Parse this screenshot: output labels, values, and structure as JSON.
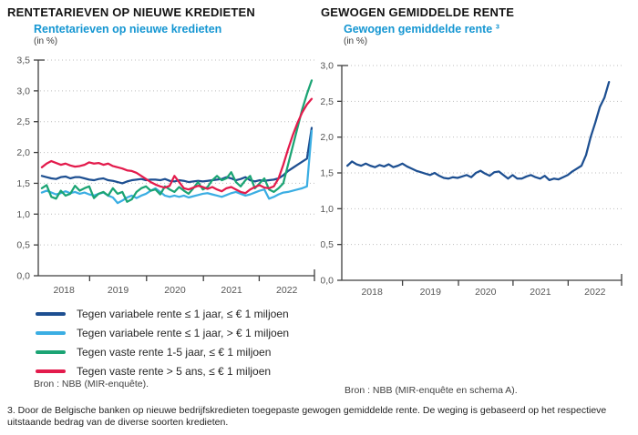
{
  "left_panel": {
    "section_title": "RENTETARIEVEN OP NIEUWE KREDIETEN",
    "chart_title": "Rentetarieven op nieuwe kredieten",
    "unit": "(in %)",
    "source": "Bron : NBB (MIR-enquête)."
  },
  "right_panel": {
    "section_title": "GEWOGEN GEMIDDELDE RENTE",
    "chart_title": "Gewogen gemiddelde rente ³",
    "unit": "(in %)",
    "source": "Bron : NBB (MIR-enquête en schema A)."
  },
  "footnote": "3. Door de Belgische banken op nieuwe bedrijfskredieten toegepaste gewogen gemiddelde rente. De weging is gebaseerd op het respectieve uitstaande bedrag van de diverse soorten kredieten.",
  "colors": {
    "title_blue": "#1496d2",
    "axis": "#3f3f3f",
    "grid": "#bebebe",
    "tick_label": "#555555"
  },
  "chart_data": [
    {
      "type": "line",
      "title": "Rentetarieven op nieuwe kredieten",
      "ylabel": "in %",
      "ylim": [
        0,
        3.5
      ],
      "ytick_step": 0.5,
      "ytick_labels": [
        "0,0",
        "0,5",
        "1,0",
        "1,5",
        "2,0",
        "2,5",
        "3,0",
        "3,5"
      ],
      "x_labels": [
        "2018",
        "2019",
        "2020",
        "2021",
        "2022"
      ],
      "frequency": "monthly",
      "x_start": "2018-01",
      "x_end": "2022-10",
      "grid": "dotted horizontal",
      "legend_position": "below",
      "series": [
        {
          "name": "Tegen variabele rente ≤ 1 jaar, ≤ € 1 miljoen",
          "color": "#1d4f91",
          "values": [
            1.62,
            1.6,
            1.58,
            1.57,
            1.6,
            1.61,
            1.58,
            1.6,
            1.6,
            1.58,
            1.56,
            1.55,
            1.57,
            1.58,
            1.55,
            1.54,
            1.52,
            1.5,
            1.53,
            1.55,
            1.56,
            1.57,
            1.55,
            1.56,
            1.56,
            1.55,
            1.57,
            1.54,
            1.53,
            1.55,
            1.54,
            1.52,
            1.53,
            1.54,
            1.53,
            1.54,
            1.55,
            1.56,
            1.57,
            1.6,
            1.58,
            1.55,
            1.57,
            1.6,
            1.55,
            1.53,
            1.55,
            1.54,
            1.55,
            1.56,
            1.58,
            1.63,
            1.7,
            1.75,
            1.8,
            1.85,
            1.9,
            2.4
          ]
        },
        {
          "name": "Tegen variabele rente ≤ 1 jaar, > € 1 miljoen",
          "color": "#3baee3",
          "values": [
            1.35,
            1.38,
            1.35,
            1.32,
            1.34,
            1.37,
            1.34,
            1.36,
            1.33,
            1.35,
            1.32,
            1.3,
            1.33,
            1.35,
            1.3,
            1.27,
            1.18,
            1.22,
            1.27,
            1.3,
            1.26,
            1.3,
            1.33,
            1.38,
            1.42,
            1.36,
            1.3,
            1.28,
            1.3,
            1.28,
            1.3,
            1.27,
            1.29,
            1.31,
            1.33,
            1.34,
            1.32,
            1.3,
            1.28,
            1.31,
            1.34,
            1.36,
            1.33,
            1.3,
            1.32,
            1.35,
            1.38,
            1.4,
            1.25,
            1.28,
            1.32,
            1.35,
            1.36,
            1.38,
            1.4,
            1.42,
            1.45,
            2.35
          ]
        },
        {
          "name": "Tegen vaste rente 1-5 jaar, ≤ € 1 miljoen",
          "color": "#1ba474",
          "values": [
            1.42,
            1.47,
            1.28,
            1.25,
            1.38,
            1.3,
            1.33,
            1.46,
            1.38,
            1.42,
            1.45,
            1.26,
            1.33,
            1.36,
            1.3,
            1.42,
            1.33,
            1.36,
            1.2,
            1.24,
            1.36,
            1.42,
            1.45,
            1.38,
            1.4,
            1.32,
            1.45,
            1.4,
            1.36,
            1.44,
            1.38,
            1.33,
            1.42,
            1.52,
            1.4,
            1.44,
            1.55,
            1.62,
            1.55,
            1.58,
            1.68,
            1.52,
            1.45,
            1.55,
            1.62,
            1.42,
            1.5,
            1.58,
            1.4,
            1.36,
            1.42,
            1.5,
            1.8,
            2.1,
            2.4,
            2.7,
            2.95,
            3.17
          ]
        },
        {
          "name": "Tegen vaste rente > 5 ans, ≤ € 1 miljoen",
          "color": "#e31b4c",
          "values": [
            1.76,
            1.82,
            1.86,
            1.83,
            1.8,
            1.82,
            1.79,
            1.77,
            1.78,
            1.8,
            1.84,
            1.82,
            1.83,
            1.8,
            1.82,
            1.78,
            1.76,
            1.74,
            1.71,
            1.7,
            1.67,
            1.62,
            1.57,
            1.52,
            1.48,
            1.45,
            1.43,
            1.46,
            1.62,
            1.52,
            1.42,
            1.4,
            1.43,
            1.46,
            1.44,
            1.41,
            1.44,
            1.4,
            1.37,
            1.42,
            1.44,
            1.4,
            1.36,
            1.34,
            1.4,
            1.44,
            1.47,
            1.43,
            1.42,
            1.45,
            1.58,
            1.8,
            2.05,
            2.28,
            2.48,
            2.65,
            2.78,
            2.87
          ]
        }
      ]
    },
    {
      "type": "line",
      "title": "Gewogen gemiddelde rente",
      "ylabel": "in %",
      "ylim": [
        0,
        3.0
      ],
      "ytick_step": 0.5,
      "ytick_labels": [
        "0,0",
        "0,5",
        "1,0",
        "1,5",
        "2,0",
        "2,5",
        "3,0"
      ],
      "x_labels": [
        "2018",
        "2019",
        "2020",
        "2021",
        "2022"
      ],
      "frequency": "monthly",
      "x_start": "2018-01",
      "x_end": "2022-10",
      "grid": "dotted horizontal",
      "legend_position": "none",
      "series": [
        {
          "name": "Gewogen gemiddelde rente",
          "color": "#1d4f91",
          "values": [
            1.6,
            1.66,
            1.62,
            1.6,
            1.63,
            1.6,
            1.58,
            1.61,
            1.59,
            1.62,
            1.58,
            1.6,
            1.63,
            1.59,
            1.56,
            1.53,
            1.51,
            1.49,
            1.47,
            1.5,
            1.46,
            1.43,
            1.42,
            1.44,
            1.43,
            1.45,
            1.47,
            1.44,
            1.5,
            1.53,
            1.49,
            1.46,
            1.51,
            1.52,
            1.47,
            1.42,
            1.47,
            1.42,
            1.42,
            1.45,
            1.47,
            1.44,
            1.42,
            1.46,
            1.4,
            1.42,
            1.41,
            1.44,
            1.47,
            1.52,
            1.56,
            1.6,
            1.75,
            2.0,
            2.2,
            2.42,
            2.55,
            2.77
          ]
        }
      ]
    }
  ]
}
